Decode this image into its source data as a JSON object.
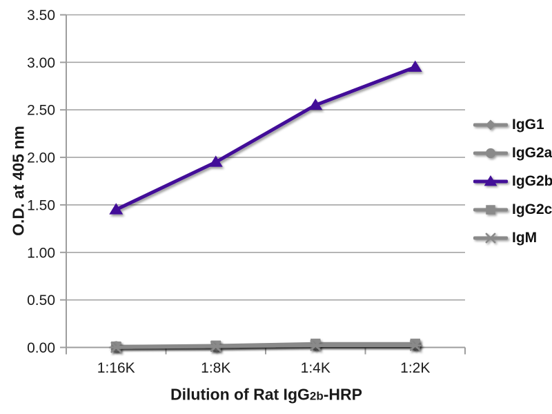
{
  "chart_data": {
    "type": "line",
    "title": "",
    "ylabel": "O.D. at 405 nm",
    "xlabel": "Dilution of Rat IgG2b-HRP",
    "xlabel_parts": {
      "prefix": "Dilution of Rat IgG",
      "subscript": "2b",
      "suffix": "-HRP"
    },
    "categories": [
      "1:16K",
      "1:8K",
      "1:4K",
      "1:2K"
    ],
    "series": [
      {
        "name": "IgG1",
        "marker": "diamond",
        "color": "#8A8A8A",
        "values": [
          0.01,
          0.01,
          0.02,
          0.02
        ]
      },
      {
        "name": "IgG2a",
        "marker": "circle",
        "color": "#8A8A8A",
        "values": [
          0.01,
          0.01,
          0.03,
          0.03
        ]
      },
      {
        "name": "IgG2b",
        "marker": "triangle",
        "color": "#431098",
        "values": [
          1.45,
          1.95,
          2.55,
          2.95
        ]
      },
      {
        "name": "IgG2c",
        "marker": "square",
        "color": "#8A8A8A",
        "values": [
          0.01,
          0.02,
          0.04,
          0.04
        ]
      },
      {
        "name": "IgM",
        "marker": "asterisk",
        "color": "#8A8A8A",
        "values": [
          0.0,
          0.01,
          0.02,
          0.02
        ]
      }
    ],
    "ylim": [
      0,
      3.5
    ],
    "ytick_step": 0.5,
    "ytick_labels": [
      "0.00",
      "0.50",
      "1.00",
      "1.50",
      "2.00",
      "2.50",
      "3.00",
      "3.50"
    ],
    "grid": "horizontal",
    "legend_position": "right",
    "colors": {
      "axis": "#9D9D9D",
      "gridline": "#A4A4A4",
      "tick_text": "#1A1A1A",
      "series_gray": "#8A8A8A",
      "series_purple": "#431098"
    }
  }
}
